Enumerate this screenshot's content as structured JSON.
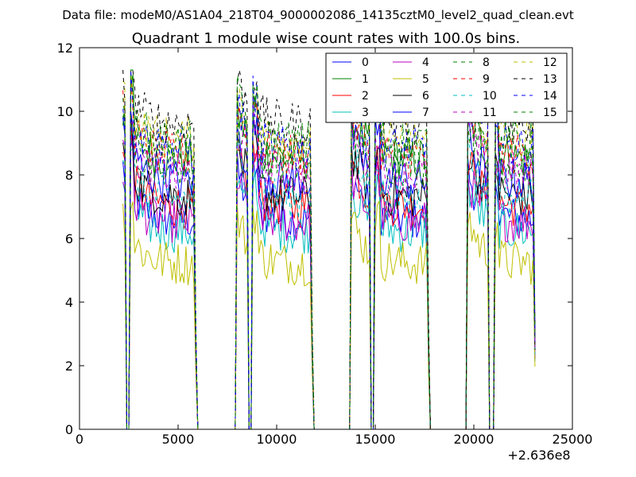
{
  "figure": {
    "suptitle": "Data file: modeM0/AS1A04_218T04_9000002086_14135cztM0_level2_quad_clean.evt"
  },
  "chart_data": {
    "type": "line",
    "title": "Quadrant 1 module wise count rates with 100.0s bins.",
    "xlabel": "",
    "ylabel": "",
    "x_offset_label": "+2.636e8",
    "xlim": [
      0,
      25000
    ],
    "ylim": [
      0,
      12
    ],
    "x_ticks": [
      0,
      5000,
      10000,
      15000,
      20000,
      25000
    ],
    "y_ticks": [
      0,
      2,
      4,
      6,
      8,
      10,
      12
    ],
    "x_tick_labels": [
      "0",
      "5000",
      "10000",
      "15000",
      "20000",
      "25000"
    ],
    "y_tick_labels": [
      "0",
      "2",
      "4",
      "6",
      "8",
      "10",
      "12"
    ],
    "legend_position": "upper-right",
    "legend_columns": 4,
    "segments_on": [
      [
        2200,
        5950
      ],
      [
        7950,
        11850
      ],
      [
        13750,
        17750
      ],
      [
        19650,
        23150
      ]
    ],
    "dropouts": [
      [
        2350,
        2500
      ],
      [
        8550,
        8750
      ],
      [
        14750,
        14950
      ],
      [
        20800,
        21000
      ]
    ],
    "series": [
      {
        "name": "0",
        "color": "#0000ff",
        "dashed": false,
        "level": 6.6
      },
      {
        "name": "1",
        "color": "#008000",
        "dashed": false,
        "level": 8.5
      },
      {
        "name": "2",
        "color": "#ff0000",
        "dashed": false,
        "level": 7.0
      },
      {
        "name": "3",
        "color": "#00bfbf",
        "dashed": false,
        "level": 6.2
      },
      {
        "name": "4",
        "color": "#bf00bf",
        "dashed": false,
        "level": 6.5
      },
      {
        "name": "5",
        "color": "#bfbf00",
        "dashed": false,
        "level": 5.2
      },
      {
        "name": "6",
        "color": "#000000",
        "dashed": false,
        "level": 7.3
      },
      {
        "name": "7",
        "color": "#0000ff",
        "dashed": false,
        "level": 7.8
      },
      {
        "name": "8",
        "color": "#008000",
        "dashed": true,
        "level": 8.3
      },
      {
        "name": "9",
        "color": "#ff0000",
        "dashed": true,
        "level": 8.6
      },
      {
        "name": "10",
        "color": "#00bfbf",
        "dashed": true,
        "level": 7.2
      },
      {
        "name": "11",
        "color": "#bf00bf",
        "dashed": true,
        "level": 8.0
      },
      {
        "name": "12",
        "color": "#bfbf00",
        "dashed": true,
        "level": 9.1
      },
      {
        "name": "13",
        "color": "#000000",
        "dashed": true,
        "level": 9.6
      },
      {
        "name": "14",
        "color": "#0000ff",
        "dashed": true,
        "level": 8.8
      },
      {
        "name": "15",
        "color": "#008000",
        "dashed": true,
        "level": 9.0
      }
    ]
  }
}
